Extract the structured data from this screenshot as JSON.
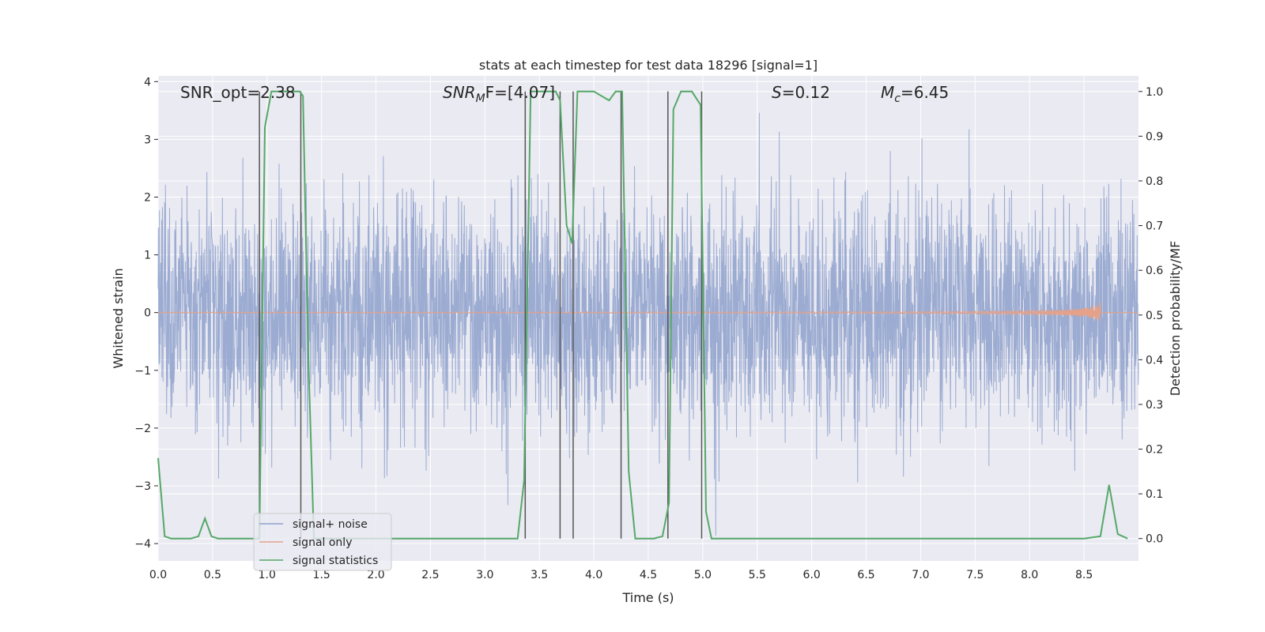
{
  "chart_data": {
    "type": "line",
    "title": "stats at each timestep for test data 18296 [signal=1]",
    "xlabel": "Time (s)",
    "ylabel_left": "Whitened strain",
    "ylabel_right": "Detection probability/MF",
    "xlim": [
      0.0,
      9.0
    ],
    "ylim_left": [
      -4.3,
      4.1
    ],
    "ylim_right": [
      -0.05,
      1.035
    ],
    "x_ticks": [
      0.0,
      0.5,
      1.0,
      1.5,
      2.0,
      2.5,
      3.0,
      3.5,
      4.0,
      4.5,
      5.0,
      5.5,
      6.0,
      6.5,
      7.0,
      7.5,
      8.0,
      8.5
    ],
    "x_tick_labels": [
      "0.0",
      "0.5",
      "1.0",
      "1.5",
      "2.0",
      "2.5",
      "3.0",
      "3.5",
      "4.0",
      "4.5",
      "5.0",
      "5.5",
      "6.0",
      "6.5",
      "7.0",
      "7.5",
      "8.0",
      "8.5"
    ],
    "y_left_ticks": [
      4,
      3,
      2,
      1,
      0,
      -1,
      -2,
      -3,
      -4
    ],
    "y_left_tick_labels": [
      "4",
      "3",
      "2",
      "1",
      "0",
      "−1",
      "−2",
      "−3",
      "−4"
    ],
    "y_right_ticks": [
      1.0,
      0.9,
      0.8,
      0.7,
      0.6,
      0.5,
      0.4,
      0.3,
      0.2,
      0.1,
      0.0
    ],
    "y_right_tick_labels": [
      "1.0",
      "0.9",
      "0.8",
      "0.7",
      "0.6",
      "0.5",
      "0.4",
      "0.3",
      "0.2",
      "0.1",
      "0.0"
    ],
    "grid": true,
    "legend_position": "lower-left",
    "annotations": {
      "snr_opt": "SNR_opt=2.38",
      "snr_mf_base": "SNR",
      "snr_mf_sub": "M",
      "snr_mf_rest": "F=[4.07]",
      "s_base": "S",
      "s_rest": "=0.12",
      "mc_base": "M",
      "mc_sub": "c",
      "mc_rest": "=6.45"
    },
    "colors": {
      "noise": "#8da0cb",
      "signal": "#e5a189",
      "stats": "#55a868",
      "vlines": "#555555",
      "background": "#eaeaf2",
      "grid": "#ffffff"
    },
    "series": [
      {
        "name": "signal+ noise",
        "axis": "left",
        "description_level": "noise envelope about ±1.4 with spikes to ±3.5"
      },
      {
        "name": "signal only",
        "axis": "left",
        "chirp_end": 8.65,
        "chirp_peak_amplitude": 0.35
      },
      {
        "name": "signal statistics",
        "axis": "right",
        "x": [
          0.0,
          0.06,
          0.12,
          0.2,
          0.3,
          0.37,
          0.43,
          0.49,
          0.55,
          0.7,
          0.85,
          0.93,
          0.98,
          1.04,
          1.1,
          1.2,
          1.3,
          1.33,
          1.38,
          1.43,
          1.5,
          1.6,
          2.0,
          2.5,
          3.0,
          3.3,
          3.36,
          3.42,
          3.48,
          3.55,
          3.65,
          3.69,
          3.75,
          3.8,
          3.85,
          3.9,
          4.0,
          4.07,
          4.14,
          4.2,
          4.26,
          4.32,
          4.38,
          4.45,
          4.55,
          4.63,
          4.69,
          4.73,
          4.8,
          4.9,
          4.98,
          5.03,
          5.08,
          5.15,
          5.5,
          6.0,
          7.0,
          8.0,
          8.5,
          8.65,
          8.73,
          8.81,
          8.9
        ],
        "y": [
          0.18,
          0.005,
          0.0,
          0.0,
          0.0,
          0.005,
          0.045,
          0.005,
          0.0,
          0.0,
          0.0,
          0.0,
          0.92,
          1.0,
          1.0,
          1.0,
          1.0,
          0.99,
          0.4,
          0.0,
          0.0,
          0.0,
          0.0,
          0.0,
          0.0,
          0.0,
          0.13,
          1.0,
          1.0,
          1.0,
          1.0,
          0.98,
          0.7,
          0.66,
          1.0,
          1.0,
          1.0,
          0.99,
          0.98,
          1.0,
          1.0,
          0.15,
          0.0,
          0.0,
          0.0,
          0.005,
          0.08,
          0.96,
          1.0,
          1.0,
          0.97,
          0.06,
          0.0,
          0.0,
          0.0,
          0.0,
          0.0,
          0.0,
          0.0,
          0.005,
          0.12,
          0.01,
          0.0
        ]
      }
    ],
    "vertical_lines_x": [
      0.93,
      1.31,
      3.37,
      3.69,
      3.81,
      4.25,
      4.68,
      4.99
    ]
  }
}
